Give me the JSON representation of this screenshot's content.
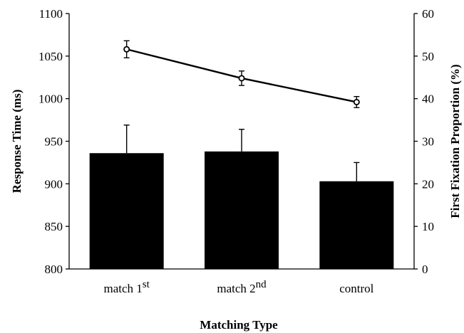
{
  "chart_data": {
    "type": "bar",
    "categories": [
      {
        "base": "match 1",
        "sup": "st"
      },
      {
        "base": "match 2",
        "sup": "nd"
      },
      {
        "base": "control",
        "sup": ""
      }
    ],
    "xlabel": "Matching Type",
    "ylabel_left": "Response Time (ms)",
    "ylabel_right": "First Fixation Proportion (%)",
    "ylim_left": [
      800,
      1100
    ],
    "ylim_right": [
      0,
      60
    ],
    "yticks_left": [
      800,
      850,
      900,
      950,
      1000,
      1050,
      1100
    ],
    "yticks_right": [
      0,
      10,
      20,
      30,
      40,
      50,
      60
    ],
    "grid": false,
    "series": [
      {
        "type": "bar",
        "axis": "left",
        "color": "#000000",
        "values": [
          936,
          938,
          903
        ],
        "error_upper": [
          33,
          26,
          22
        ]
      },
      {
        "type": "line",
        "axis": "right",
        "color": "#000000",
        "marker": "open-circle",
        "values": [
          51.6,
          44.8,
          39.2
        ],
        "error": [
          2.0,
          1.7,
          1.3
        ]
      }
    ]
  }
}
